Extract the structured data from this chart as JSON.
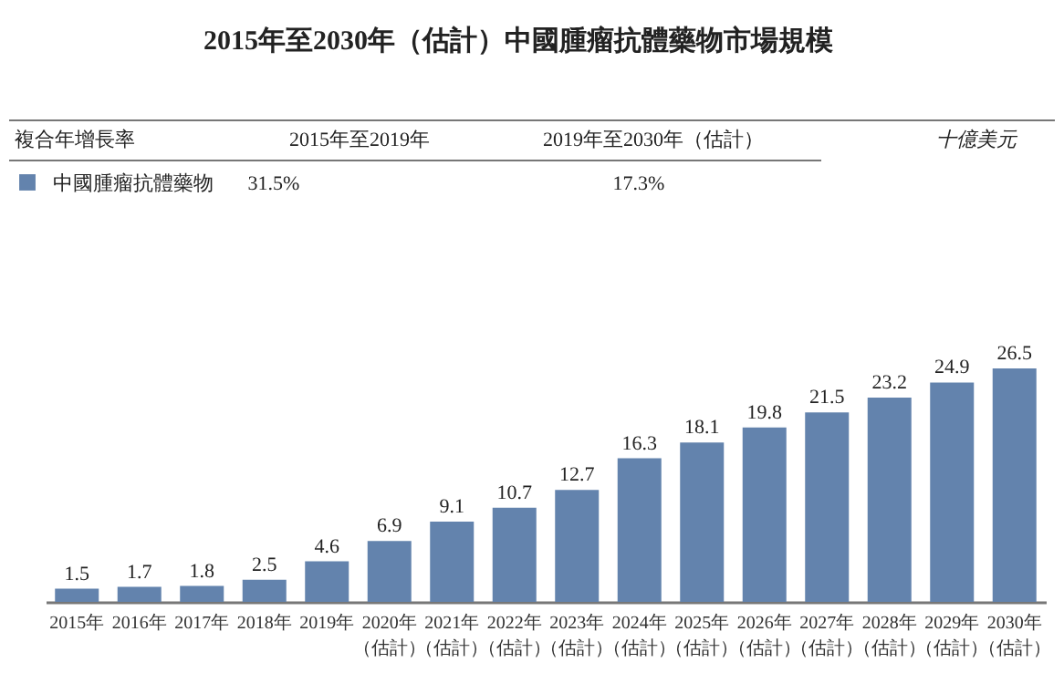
{
  "chart_data": {
    "type": "bar",
    "title": "2015年至2030年（估計）中國腫瘤抗體藥物市場規模",
    "categories": [
      "2015年",
      "2016年",
      "2017年",
      "2018年",
      "2019年",
      "2020年（估計）",
      "2021年（估計）",
      "2022年（估計）",
      "2023年（估計）",
      "2024年（估計）",
      "2025年（估計）",
      "2026年（估計）",
      "2027年（估計）",
      "2028年（估計）",
      "2029年（估計）",
      "2030年（估計）"
    ],
    "series": [
      {
        "name": "中國腫瘤抗體藥物",
        "color": "#6383ad",
        "values": [
          1.5,
          1.7,
          1.8,
          2.5,
          4.6,
          6.9,
          9.1,
          10.7,
          12.7,
          16.3,
          18.1,
          19.8,
          21.5,
          23.2,
          24.9,
          26.5
        ]
      }
    ],
    "data_labels": true,
    "legend": "top left",
    "grid": false,
    "annotations": [
      "複合年增長率",
      "2015年至2019年",
      "2019年至2030年（估計）",
      "31.5%",
      "17.3%",
      "十億美元"
    ]
  }
}
